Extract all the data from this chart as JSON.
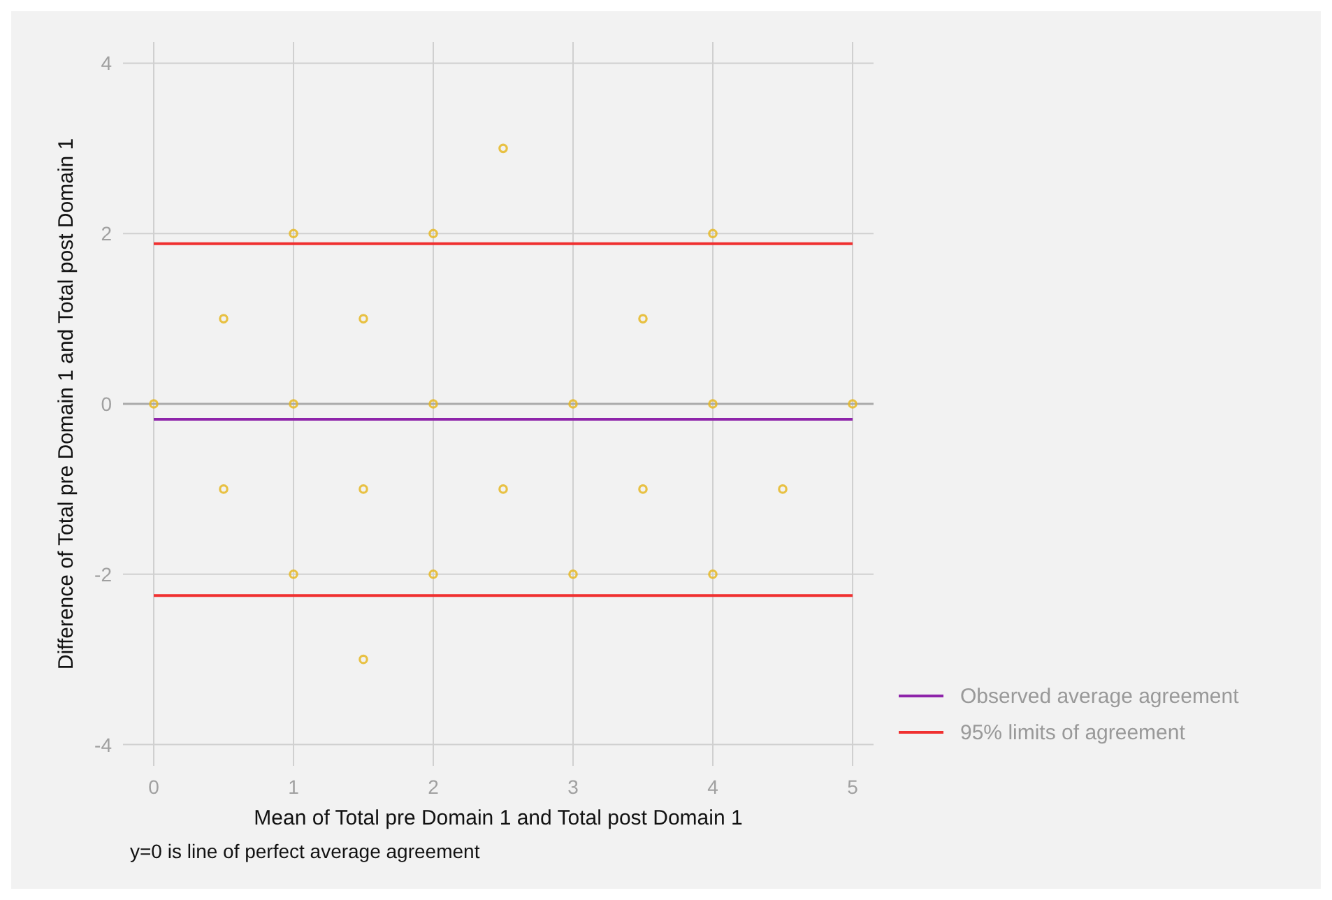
{
  "chart_data": {
    "type": "scatter",
    "xlabel": "Mean of Total pre Domain 1 and Total post Domain 1",
    "ylabel": "Difference of Total pre Domain 1 and Total post Domain 1",
    "annotations": [
      "y=0 is line of perfect average agreement"
    ],
    "xlim": [
      -0.22,
      5.15
    ],
    "ylim": [
      -4.25,
      4.25
    ],
    "xticks": [
      0,
      1,
      2,
      3,
      4,
      5
    ],
    "yticks": [
      -4,
      -2,
      0,
      2,
      4
    ],
    "grid": true,
    "legend": "right",
    "ref_lines": [
      {
        "axis": "y",
        "value": 0,
        "color": "#aaaaaa"
      }
    ],
    "series": [
      {
        "marker": "circle",
        "color": "#e6b824",
        "x": [
          0,
          0.5,
          0.5,
          1,
          1,
          1,
          1.5,
          1.5,
          1.5,
          2,
          2,
          2,
          2.5,
          2.5,
          3,
          3,
          3.5,
          3.5,
          4,
          4,
          4,
          4.5,
          5
        ],
        "values": [
          0,
          1,
          -1,
          2,
          0,
          -2,
          1,
          -1,
          -3,
          2,
          0,
          -2,
          3,
          -1,
          0,
          -2,
          1,
          -1,
          2,
          0,
          -2,
          -1,
          0
        ]
      },
      {
        "type": "line",
        "name": "Observed average agreement",
        "color": "#8e24aa",
        "x": [
          0,
          5
        ],
        "values": [
          -0.18,
          -0.18
        ],
        "line_style": "solid"
      },
      {
        "type": "line",
        "name": "95% limits of agreement",
        "color": "#f03030",
        "x": [
          0,
          5
        ],
        "values": [
          1.88,
          1.88
        ],
        "line_style": "solid"
      },
      {
        "type": "line",
        "color": "#f03030",
        "x": [
          0,
          5
        ],
        "values": [
          -2.25,
          -2.25
        ],
        "line_style": "solid"
      }
    ]
  }
}
